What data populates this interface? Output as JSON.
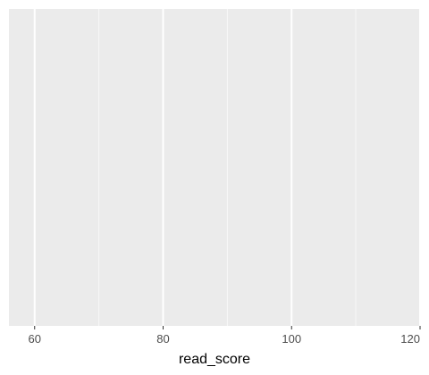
{
  "chart_data": {
    "type": "bar",
    "title": "",
    "xlabel": "read_score",
    "ylabel": "",
    "xlim": [
      56,
      120
    ],
    "x_major_ticks": [
      60,
      80,
      100,
      120
    ],
    "x_tick_labels": [
      "60",
      "80",
      "100",
      "120"
    ],
    "x_minor_ticks": [
      70,
      90,
      110
    ],
    "y_ticks": [],
    "series": [],
    "grid": true,
    "legend": "none",
    "colors": {
      "panel_background": "#ebebeb",
      "grid_major": "#ffffff",
      "grid_minor": "#f7f7f7",
      "tick": "#333333"
    }
  }
}
